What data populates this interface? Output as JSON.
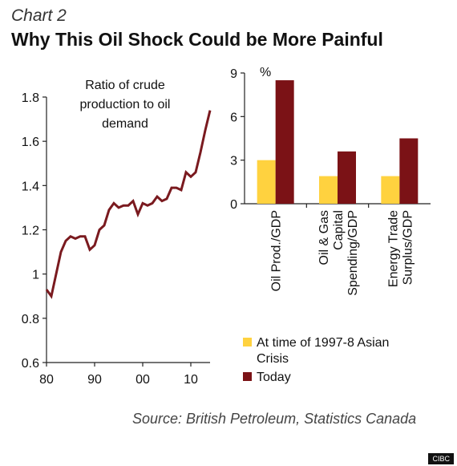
{
  "header": {
    "chart_label": "Chart 2",
    "title": "Why This Oil Shock Could be More Painful"
  },
  "footer": {
    "source": "Source: British Petroleum, Statistics Canada",
    "watermark": "CIBC"
  },
  "colors": {
    "line": "#7a1a1f",
    "asian_crisis": "#ffd23f",
    "today": "#7b1216",
    "axis": "#222222"
  },
  "chart_data": [
    {
      "type": "line",
      "annotation": "Ratio of crude production to oil demand",
      "xticks": [
        80,
        90,
        0,
        10
      ],
      "xtick_labels": [
        "80",
        "90",
        "00",
        "10"
      ],
      "xlim": [
        80,
        114
      ],
      "yticks": [
        0.6,
        0.8,
        1,
        1.2,
        1.4,
        1.6,
        1.8
      ],
      "ytick_labels": [
        "0.6",
        "0.8",
        "1",
        "1.2",
        "1.4",
        "1.6",
        "1.8"
      ],
      "ylim": [
        0.6,
        1.8
      ],
      "x": [
        80,
        81,
        82,
        83,
        84,
        85,
        86,
        87,
        88,
        89,
        90,
        91,
        92,
        93,
        94,
        95,
        96,
        97,
        98,
        99,
        100,
        101,
        102,
        103,
        104,
        105,
        106,
        107,
        108,
        109,
        110,
        111,
        112,
        113,
        114
      ],
      "y": [
        0.93,
        0.9,
        1.0,
        1.1,
        1.15,
        1.17,
        1.16,
        1.17,
        1.17,
        1.11,
        1.13,
        1.2,
        1.22,
        1.29,
        1.32,
        1.3,
        1.31,
        1.31,
        1.33,
        1.27,
        1.32,
        1.31,
        1.32,
        1.35,
        1.33,
        1.34,
        1.39,
        1.39,
        1.38,
        1.46,
        1.44,
        1.46,
        1.55,
        1.65,
        1.74
      ]
    },
    {
      "type": "bar",
      "unit_label": "%",
      "categories": [
        [
          "Oil Prod./GDP"
        ],
        [
          "Oil & Gas",
          "Capital",
          "Spending/GDP"
        ],
        [
          "Energy Trade",
          "Surplus/GDP"
        ]
      ],
      "series": [
        {
          "name": "At time of 1997-8 Asian Crisis",
          "values": [
            3.0,
            1.9,
            1.9
          ]
        },
        {
          "name": "Today",
          "values": [
            8.5,
            3.6,
            4.5
          ]
        }
      ],
      "yticks": [
        0,
        3,
        6,
        9
      ],
      "ylim": [
        0,
        9
      ],
      "legend_position": "bottom",
      "legend": [
        {
          "lines": [
            "At time of 1997-8 Asian",
            "Crisis"
          ]
        },
        {
          "lines": [
            "Today"
          ]
        }
      ]
    }
  ]
}
